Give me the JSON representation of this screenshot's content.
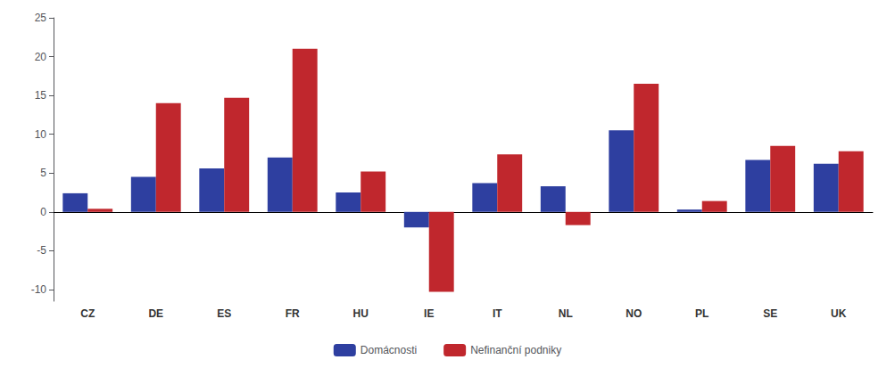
{
  "chart_data": {
    "type": "bar",
    "categories": [
      "CZ",
      "DE",
      "ES",
      "FR",
      "HU",
      "IE",
      "IT",
      "NL",
      "NO",
      "PL",
      "SE",
      "UK"
    ],
    "series": [
      {
        "name": "Domácnosti",
        "color": "#2E3FA0",
        "values": [
          2.4,
          4.5,
          5.6,
          7.0,
          2.5,
          -2.0,
          3.7,
          3.3,
          10.5,
          0.3,
          6.7,
          6.2
        ]
      },
      {
        "name": "Nefinanční podniky",
        "color": "#C0272D",
        "values": [
          0.4,
          14.0,
          14.7,
          21.0,
          5.2,
          -10.3,
          7.4,
          -1.7,
          16.5,
          1.4,
          8.5,
          7.8
        ]
      }
    ],
    "ylim": [
      -11.5,
      25
    ],
    "yticks": [
      -10,
      -5,
      0,
      5,
      10,
      15,
      20,
      25
    ],
    "grid": false,
    "legend": "bottom"
  }
}
